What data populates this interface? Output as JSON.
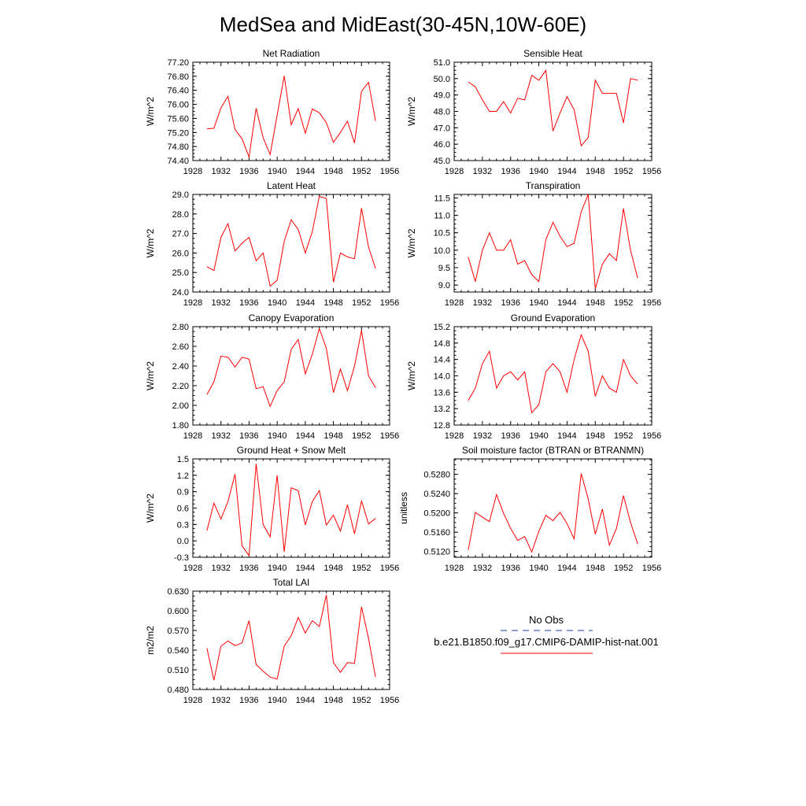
{
  "figure": {
    "title": "MedSea and MidEast(30-45N,10W-60E)"
  },
  "legend": {
    "entries": [
      {
        "label": "No Obs",
        "color": "#1f3a93",
        "dash": "dashed"
      },
      {
        "label": "b.e21.B1850.f09_g17.CMIP6-DAMIP-hist-nat.001",
        "color": "#ff0000",
        "dash": "solid"
      }
    ]
  },
  "chart_data": [
    {
      "type": "line",
      "title": "Net Radiation",
      "ylabel": "W/m^2",
      "xlim": [
        1928,
        1956
      ],
      "xticks": [
        1928,
        1932,
        1936,
        1940,
        1944,
        1948,
        1952,
        1956
      ],
      "ylim": [
        74.4,
        77.2
      ],
      "yticks": [
        "74.40",
        "74.80",
        "75.20",
        "75.60",
        "76.00",
        "76.40",
        "76.80",
        "77.20"
      ],
      "series": [
        {
          "color": "#ff0000",
          "x": [
            1930,
            1931,
            1932,
            1933,
            1934,
            1935,
            1936,
            1937,
            1938,
            1939,
            1940,
            1941,
            1942,
            1943,
            1944,
            1945,
            1946,
            1947,
            1948,
            1949,
            1950,
            1951,
            1952,
            1953,
            1954
          ],
          "values": [
            75.3,
            75.32,
            75.9,
            76.23,
            75.28,
            75.02,
            74.5,
            75.89,
            75.05,
            74.57,
            75.69,
            76.81,
            75.42,
            75.88,
            75.18,
            75.87,
            75.76,
            75.48,
            74.92,
            75.2,
            75.52,
            74.9,
            76.37,
            76.63,
            75.53
          ]
        }
      ]
    },
    {
      "type": "line",
      "title": "Sensible Heat",
      "ylabel": "W/m^2",
      "xlim": [
        1928,
        1956
      ],
      "xticks": [
        1928,
        1932,
        1936,
        1940,
        1944,
        1948,
        1952,
        1956
      ],
      "ylim": [
        45.0,
        51.0
      ],
      "yticks": [
        "45.0",
        "46.0",
        "47.0",
        "48.0",
        "49.0",
        "50.0",
        "51.0"
      ],
      "series": [
        {
          "color": "#ff0000",
          "x": [
            1930,
            1931,
            1932,
            1933,
            1934,
            1935,
            1936,
            1937,
            1938,
            1939,
            1940,
            1941,
            1942,
            1943,
            1944,
            1945,
            1946,
            1947,
            1948,
            1949,
            1950,
            1951,
            1952,
            1953,
            1954
          ],
          "values": [
            49.8,
            49.5,
            48.7,
            48.0,
            48.0,
            48.6,
            47.9,
            48.8,
            48.7,
            50.2,
            49.9,
            50.5,
            46.8,
            47.9,
            48.9,
            48.1,
            45.9,
            46.4,
            49.9,
            49.1,
            49.1,
            49.1,
            47.3,
            50.0,
            49.9
          ]
        }
      ]
    },
    {
      "type": "line",
      "title": "Latent Heat",
      "ylabel": "W/m^2",
      "xlim": [
        1928,
        1956
      ],
      "xticks": [
        1928,
        1932,
        1936,
        1940,
        1944,
        1948,
        1952,
        1956
      ],
      "ylim": [
        24.0,
        29.0
      ],
      "yticks": [
        "24.0",
        "25.0",
        "26.0",
        "27.0",
        "28.0",
        "29.0"
      ],
      "series": [
        {
          "color": "#ff0000",
          "x": [
            1930,
            1931,
            1932,
            1933,
            1934,
            1935,
            1936,
            1937,
            1938,
            1939,
            1940,
            1941,
            1942,
            1943,
            1944,
            1945,
            1946,
            1947,
            1948,
            1949,
            1950,
            1951,
            1952,
            1953,
            1954
          ],
          "values": [
            25.3,
            25.1,
            26.8,
            27.5,
            26.1,
            26.5,
            26.8,
            25.6,
            26.0,
            24.3,
            24.6,
            26.6,
            27.7,
            27.2,
            26.0,
            27.1,
            28.9,
            28.8,
            24.5,
            26.0,
            25.8,
            25.7,
            28.3,
            26.3,
            25.2
          ]
        }
      ]
    },
    {
      "type": "line",
      "title": "Transpiration",
      "ylabel": "W/m^2",
      "xlim": [
        1928,
        1956
      ],
      "xticks": [
        1928,
        1932,
        1936,
        1940,
        1944,
        1948,
        1952,
        1956
      ],
      "ylim": [
        8.8,
        11.6
      ],
      "yticks": [
        "9.0",
        "9.5",
        "10.0",
        "10.5",
        "11.0",
        "11.5"
      ],
      "series": [
        {
          "color": "#ff0000",
          "x": [
            1930,
            1931,
            1932,
            1933,
            1934,
            1935,
            1936,
            1937,
            1938,
            1939,
            1940,
            1941,
            1942,
            1943,
            1944,
            1945,
            1946,
            1947,
            1948,
            1949,
            1950,
            1951,
            1952,
            1953,
            1954
          ],
          "values": [
            9.8,
            9.1,
            10.0,
            10.5,
            10.0,
            10.0,
            10.3,
            9.6,
            9.7,
            9.3,
            9.1,
            10.3,
            10.8,
            10.4,
            10.1,
            10.2,
            11.1,
            11.6,
            8.9,
            9.6,
            9.9,
            9.7,
            11.2,
            10.0,
            9.2
          ]
        }
      ]
    },
    {
      "type": "line",
      "title": "Canopy Evaporation",
      "ylabel": "W/m^2",
      "xlim": [
        1928,
        1956
      ],
      "xticks": [
        1928,
        1932,
        1936,
        1940,
        1944,
        1948,
        1952,
        1956
      ],
      "ylim": [
        1.8,
        2.8
      ],
      "yticks": [
        "1.80",
        "2.00",
        "2.20",
        "2.40",
        "2.60",
        "2.80"
      ],
      "series": [
        {
          "color": "#ff0000",
          "x": [
            1930,
            1931,
            1932,
            1933,
            1934,
            1935,
            1936,
            1937,
            1938,
            1939,
            1940,
            1941,
            1942,
            1943,
            1944,
            1945,
            1946,
            1947,
            1948,
            1949,
            1950,
            1951,
            1952,
            1953,
            1954
          ],
          "values": [
            2.11,
            2.24,
            2.5,
            2.49,
            2.39,
            2.49,
            2.47,
            2.17,
            2.19,
            1.99,
            2.15,
            2.24,
            2.57,
            2.67,
            2.32,
            2.52,
            2.78,
            2.58,
            2.13,
            2.37,
            2.15,
            2.4,
            2.76,
            2.3,
            2.18
          ]
        }
      ]
    },
    {
      "type": "line",
      "title": "Ground Evaporation",
      "ylabel": "W/m^2",
      "xlim": [
        1928,
        1956
      ],
      "xticks": [
        1928,
        1932,
        1936,
        1940,
        1944,
        1948,
        1952,
        1956
      ],
      "ylim": [
        12.8,
        15.2
      ],
      "yticks": [
        "12.8",
        "13.2",
        "13.6",
        "14.0",
        "14.4",
        "14.8",
        "15.2"
      ],
      "series": [
        {
          "color": "#ff0000",
          "x": [
            1930,
            1931,
            1932,
            1933,
            1934,
            1935,
            1936,
            1937,
            1938,
            1939,
            1940,
            1941,
            1942,
            1943,
            1944,
            1945,
            1946,
            1947,
            1948,
            1949,
            1950,
            1951,
            1952,
            1953,
            1954
          ],
          "values": [
            13.4,
            13.7,
            14.3,
            14.6,
            13.7,
            14.0,
            14.1,
            13.9,
            14.1,
            13.1,
            13.3,
            14.1,
            14.3,
            14.1,
            13.6,
            14.4,
            15.0,
            14.6,
            13.5,
            14.0,
            13.7,
            13.6,
            14.4,
            14.0,
            13.8
          ]
        }
      ]
    },
    {
      "type": "line",
      "title": "Ground Heat + Snow Melt",
      "ylabel": "W/m^2",
      "xlim": [
        1928,
        1956
      ],
      "xticks": [
        1928,
        1932,
        1936,
        1940,
        1944,
        1948,
        1952,
        1956
      ],
      "ylim": [
        -0.3,
        1.5
      ],
      "yticks": [
        "-0.3",
        "0.0",
        "0.3",
        "0.6",
        "0.9",
        "1.2",
        "1.5"
      ],
      "series": [
        {
          "color": "#ff0000",
          "x": [
            1930,
            1931,
            1932,
            1933,
            1934,
            1935,
            1936,
            1937,
            1938,
            1939,
            1940,
            1941,
            1942,
            1943,
            1944,
            1945,
            1946,
            1947,
            1948,
            1949,
            1950,
            1951,
            1952,
            1953,
            1954
          ],
          "values": [
            0.19,
            0.69,
            0.4,
            0.72,
            1.22,
            -0.09,
            -0.27,
            1.41,
            0.3,
            0.07,
            1.2,
            -0.2,
            0.97,
            0.92,
            0.29,
            0.72,
            0.92,
            0.29,
            0.47,
            0.18,
            0.66,
            0.13,
            0.73,
            0.31,
            0.41
          ]
        }
      ]
    },
    {
      "type": "line",
      "title": "Soil moisture factor (BTRAN or BTRANMN)",
      "ylabel": "unitless",
      "xlim": [
        1928,
        1956
      ],
      "xticks": [
        1928,
        1932,
        1936,
        1940,
        1944,
        1948,
        1952,
        1956
      ],
      "ylim": [
        0.5108,
        0.5312
      ],
      "yticks": [
        "0.5120",
        "0.5160",
        "0.5200",
        "0.5240",
        "0.5280"
      ],
      "series": [
        {
          "color": "#ff0000",
          "x": [
            1930,
            1931,
            1932,
            1933,
            1934,
            1935,
            1936,
            1937,
            1938,
            1939,
            1940,
            1941,
            1942,
            1943,
            1944,
            1945,
            1946,
            1947,
            1948,
            1949,
            1950,
            1951,
            1952,
            1953,
            1954
          ],
          "values": [
            0.5123,
            0.5201,
            0.5191,
            0.5182,
            0.5238,
            0.5199,
            0.5168,
            0.5143,
            0.5151,
            0.5119,
            0.5162,
            0.5195,
            0.5184,
            0.5201,
            0.5178,
            0.5146,
            0.5282,
            0.5229,
            0.5156,
            0.5208,
            0.5133,
            0.5168,
            0.5236,
            0.518,
            0.5136
          ]
        }
      ]
    },
    {
      "type": "line",
      "title": "Total LAI",
      "ylabel": "m2/m2",
      "xlim": [
        1928,
        1956
      ],
      "xticks": [
        1928,
        1932,
        1936,
        1940,
        1944,
        1948,
        1952,
        1956
      ],
      "ylim": [
        0.48,
        0.63
      ],
      "yticks": [
        "0.480",
        "0.510",
        "0.540",
        "0.570",
        "0.600",
        "0.630"
      ],
      "series": [
        {
          "color": "#ff0000",
          "x": [
            1930,
            1931,
            1932,
            1933,
            1934,
            1935,
            1936,
            1937,
            1938,
            1939,
            1940,
            1941,
            1942,
            1943,
            1944,
            1945,
            1946,
            1947,
            1948,
            1949,
            1950,
            1951,
            1952,
            1953,
            1954
          ],
          "values": [
            0.543,
            0.494,
            0.546,
            0.554,
            0.547,
            0.551,
            0.585,
            0.518,
            0.508,
            0.499,
            0.496,
            0.546,
            0.562,
            0.59,
            0.566,
            0.585,
            0.576,
            0.624,
            0.521,
            0.506,
            0.521,
            0.52,
            0.606,
            0.558,
            0.499
          ]
        }
      ]
    }
  ]
}
